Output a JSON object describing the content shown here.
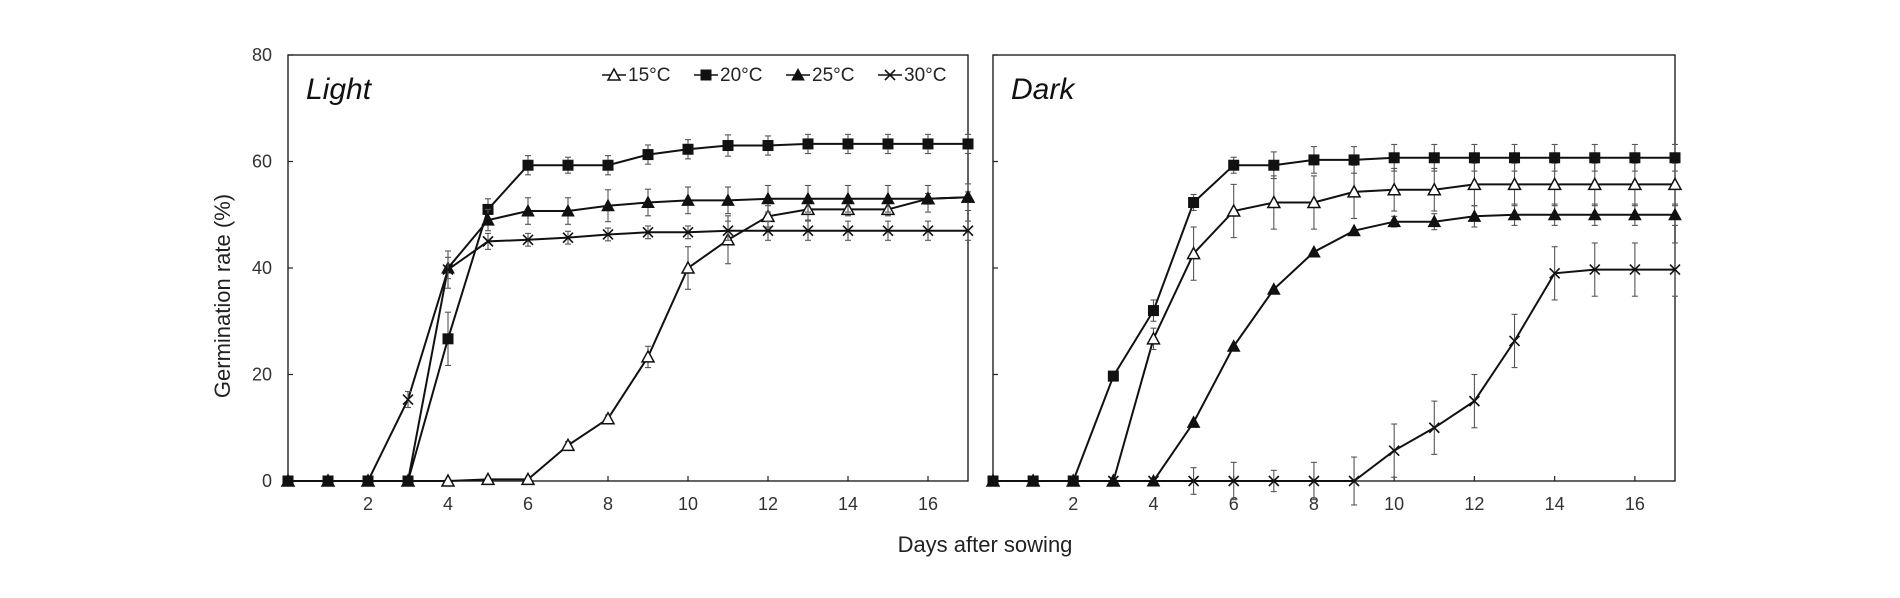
{
  "chart_data": {
    "type": "line",
    "xlabel": "Days after sowing",
    "ylabel": "Germination rate (%)",
    "xlim": [
      0,
      17
    ],
    "ylim": [
      0,
      80
    ],
    "xticks": [
      2,
      4,
      6,
      8,
      10,
      12,
      14,
      16
    ],
    "yticks": [
      0,
      20,
      40,
      60,
      80
    ],
    "x": [
      0,
      1,
      2,
      3,
      4,
      5,
      6,
      7,
      8,
      9,
      10,
      11,
      12,
      13,
      14,
      15,
      16,
      17
    ],
    "legend": [
      {
        "name": "15°C",
        "marker": "open-triangle"
      },
      {
        "name": "20°C",
        "marker": "filled-square"
      },
      {
        "name": "25°C",
        "marker": "filled-triangle"
      },
      {
        "name": "30°C",
        "marker": "cross"
      }
    ],
    "panels": [
      {
        "title": "Light",
        "series": [
          {
            "name": "15°C",
            "marker": "open-triangle",
            "values": [
              0,
              0,
              0,
              0,
              0,
              0.3,
              0.3,
              6.7,
              11.7,
              23.3,
              40,
              45.3,
              49.7,
              51,
              51,
              51,
              53,
              53.3
            ],
            "errors": [
              0,
              0,
              0,
              0,
              0,
              0,
              0,
              0.7,
              0.7,
              2,
              4,
              4.5,
              2,
              2,
              1.2,
              1.2,
              1,
              1
            ]
          },
          {
            "name": "20°C",
            "marker": "filled-square",
            "values": [
              0,
              0,
              0,
              0,
              26.7,
              51,
              59.3,
              59.3,
              59.3,
              61.3,
              62.3,
              63,
              63,
              63.3,
              63.3,
              63.3,
              63.3,
              63.3
            ],
            "errors": [
              0,
              0,
              0,
              0,
              5,
              2,
              1.8,
              1.5,
              1.8,
              1.8,
              1.8,
              2,
              1.8,
              1.8,
              1.8,
              1.8,
              1.8,
              1.8
            ]
          },
          {
            "name": "25°C",
            "marker": "filled-triangle",
            "values": [
              0,
              0,
              0,
              0,
              40,
              49,
              50.7,
              50.7,
              51.7,
              52.3,
              52.7,
              52.7,
              53,
              53,
              53,
              53,
              53,
              53.3
            ],
            "errors": [
              0,
              0,
              0,
              0,
              2,
              2,
              2.5,
              2.5,
              3,
              2.5,
              2.5,
              2.5,
              2.5,
              2.5,
              2.5,
              2.5,
              2.5,
              2.5
            ]
          },
          {
            "name": "30°C",
            "marker": "cross",
            "values": [
              0,
              0,
              0,
              15.3,
              39.7,
              45,
              45.3,
              45.7,
              46.3,
              46.7,
              46.7,
              47,
              47,
              47,
              47,
              47,
              47,
              47
            ],
            "errors": [
              0,
              0,
              0,
              1.5,
              3.5,
              1.5,
              1.2,
              1.2,
              1.2,
              1.2,
              1.2,
              1.8,
              1.8,
              1.8,
              1.8,
              1.8,
              1.8,
              1.8
            ]
          }
        ]
      },
      {
        "title": "Dark",
        "series": [
          {
            "name": "15°C",
            "marker": "open-triangle",
            "values": [
              0,
              0,
              0,
              0,
              26.7,
              42.7,
              50.7,
              52.3,
              52.3,
              54.3,
              54.7,
              54.7,
              55.7,
              55.7,
              55.7,
              55.7,
              55.7,
              55.7
            ],
            "errors": [
              0,
              0,
              0,
              0,
              2,
              5,
              5,
              5,
              5,
              5,
              4,
              4,
              4,
              4,
              4,
              4,
              4,
              4
            ]
          },
          {
            "name": "20°C",
            "marker": "filled-square",
            "values": [
              0,
              0,
              0,
              19.7,
              32,
              52.3,
              59.3,
              59.3,
              60.3,
              60.3,
              60.7,
              60.7,
              60.7,
              60.7,
              60.7,
              60.7,
              60.7,
              60.7
            ],
            "errors": [
              0,
              0,
              0,
              0,
              2,
              1.5,
              1.5,
              2.5,
              2.5,
              2.5,
              2.5,
              2.5,
              2.5,
              2.5,
              2.5,
              2.5,
              2.5,
              2.5
            ]
          },
          {
            "name": "25°C",
            "marker": "filled-triangle",
            "values": [
              0,
              0,
              0,
              0,
              0,
              11,
              25.3,
              36,
              43,
              47,
              48.7,
              48.7,
              49.7,
              50,
              50,
              50,
              50,
              50
            ],
            "errors": [
              0,
              0,
              0,
              0,
              0,
              0,
              0,
              0,
              0,
              0,
              1,
              1.5,
              2,
              2,
              2,
              2,
              2,
              2
            ]
          },
          {
            "name": "30°C",
            "marker": "cross",
            "values": [
              0,
              0,
              0,
              0,
              0,
              0,
              0,
              0,
              0,
              0,
              5.7,
              10,
              15,
              26.3,
              39,
              39.7,
              39.7,
              39.7
            ],
            "errors": [
              0,
              0,
              0,
              0,
              0,
              2.5,
              3.5,
              2,
              3.5,
              4.5,
              5,
              5,
              5,
              5,
              5,
              5,
              5,
              5
            ]
          }
        ]
      }
    ]
  }
}
